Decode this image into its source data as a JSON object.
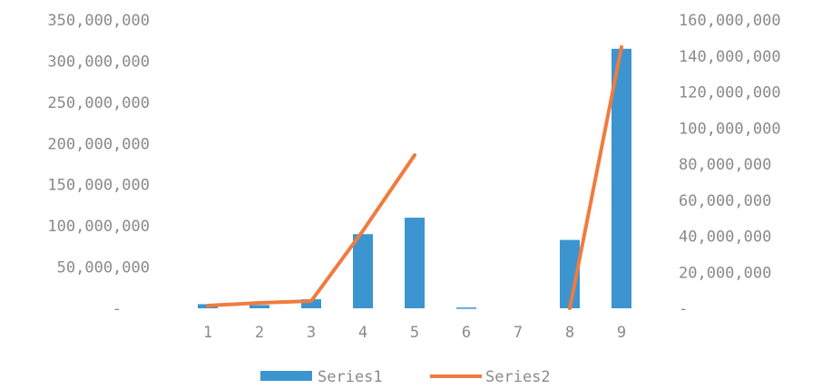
{
  "chart_data": {
    "type": "bar",
    "categories": [
      "1",
      "2",
      "3",
      "4",
      "5",
      "6",
      "7",
      "8",
      "9"
    ],
    "series": [
      {
        "name": "Series1",
        "kind": "bar",
        "axis": "left",
        "color": "#3d95cf",
        "values": [
          5000000,
          4000000,
          11000000,
          90000000,
          110000000,
          1000000,
          0,
          83000000,
          315000000
        ]
      },
      {
        "name": "Series2",
        "kind": "line",
        "axis": "right",
        "color": "#f07b3f",
        "values": [
          1500000,
          3000000,
          4000000,
          43000000,
          85000000,
          null,
          null,
          0,
          145000000
        ]
      }
    ],
    "y_left": {
      "ylim": [
        0,
        350000000
      ],
      "ticks": [
        0,
        50000000,
        100000000,
        150000000,
        200000000,
        250000000,
        300000000,
        350000000
      ],
      "tick_labels": [
        "-",
        "50,000,000",
        "100,000,000",
        "150,000,000",
        "200,000,000",
        "250,000,000",
        "300,000,000",
        "350,000,000"
      ]
    },
    "y_right": {
      "ylim": [
        0,
        160000000
      ],
      "ticks": [
        0,
        20000000,
        40000000,
        60000000,
        80000000,
        100000000,
        120000000,
        140000000,
        160000000
      ],
      "tick_labels": [
        "-",
        "20,000,000",
        "40,000,000",
        "60,000,000",
        "80,000,000",
        "100,000,000",
        "120,000,000",
        "140,000,000",
        "160,000,000"
      ]
    },
    "grid": false,
    "legend_position": "bottom",
    "title": "",
    "xlabel": "",
    "ylabel": ""
  }
}
